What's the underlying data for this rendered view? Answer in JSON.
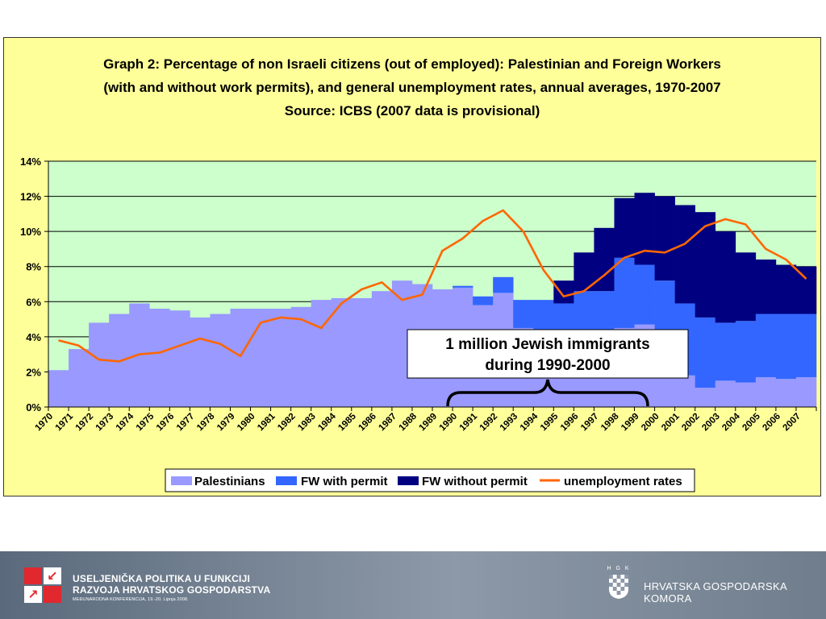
{
  "chart_data": {
    "type": "bar",
    "stacked": true,
    "title_lines": [
      "Graph 2: Percentage of non Israeli citizens (out of employed): Palestinian and Foreign Workers",
      "(with and without work permits), and general unemployment rates, annual averages, 1970-2007",
      "Source: ICBS (2007 data is provisional)"
    ],
    "categories": [
      "1970",
      "1971",
      "1972",
      "1973",
      "1974",
      "1975",
      "1976",
      "1977",
      "1978",
      "1979",
      "1980",
      "1981",
      "1982",
      "1983",
      "1984",
      "1985",
      "1986",
      "1987",
      "1988",
      "1989",
      "1990",
      "1991",
      "1992",
      "1993",
      "1994",
      "1995",
      "1996",
      "1997",
      "1998",
      "1999",
      "2000",
      "2001",
      "2002",
      "2003",
      "2004",
      "2005",
      "2006",
      "2007"
    ],
    "ylim": [
      0,
      14
    ],
    "yticks": [
      "0%",
      "2%",
      "4%",
      "6%",
      "8%",
      "10%",
      "12%",
      "14%"
    ],
    "y_unit": "%",
    "grid": true,
    "legend_position": "bottom",
    "series": [
      {
        "name": "Palestinians",
        "kind": "bar",
        "color": "#9999ff",
        "values": [
          2.1,
          3.3,
          4.8,
          5.3,
          5.9,
          5.6,
          5.5,
          5.1,
          5.3,
          5.6,
          5.6,
          5.6,
          5.7,
          6.1,
          6.2,
          6.2,
          6.6,
          7.2,
          7.0,
          6.7,
          6.8,
          5.8,
          6.5,
          4.5,
          4.0,
          2.8,
          2.6,
          3.8,
          4.5,
          4.7,
          4.3,
          1.8,
          1.1,
          1.5,
          1.4,
          1.7,
          1.6,
          1.7
        ]
      },
      {
        "name": "FW with permit",
        "kind": "bar",
        "color": "#3366ff",
        "values": [
          0,
          0,
          0,
          0,
          0,
          0,
          0,
          0,
          0,
          0,
          0,
          0,
          0,
          0,
          0,
          0,
          0,
          0,
          0,
          0,
          0.1,
          0.5,
          0.9,
          1.6,
          2.1,
          3.1,
          4.0,
          2.8,
          4.0,
          3.4,
          2.9,
          4.1,
          4.0,
          3.3,
          3.5,
          3.6,
          3.7,
          3.6
        ]
      },
      {
        "name": "FW without permit",
        "kind": "bar",
        "color": "#000080",
        "values": [
          0,
          0,
          0,
          0,
          0,
          0,
          0,
          0,
          0,
          0,
          0,
          0,
          0,
          0,
          0,
          0,
          0,
          0,
          0,
          0,
          0,
          0,
          0,
          0,
          0,
          1.3,
          2.2,
          3.6,
          3.4,
          4.1,
          4.8,
          5.6,
          6.0,
          5.2,
          3.9,
          3.1,
          2.8,
          2.7
        ]
      },
      {
        "name": "unemployment rates",
        "kind": "line",
        "color": "#ff6600",
        "values": [
          3.8,
          3.5,
          2.7,
          2.6,
          3.0,
          3.1,
          3.5,
          3.9,
          3.6,
          2.9,
          4.8,
          5.1,
          5.0,
          4.5,
          5.9,
          6.7,
          7.1,
          6.1,
          6.4,
          8.9,
          9.6,
          10.6,
          11.2,
          10.0,
          7.8,
          6.3,
          6.6,
          7.5,
          8.5,
          8.9,
          8.8,
          9.3,
          10.3,
          10.7,
          10.4,
          9.0,
          8.4,
          7.3
        ]
      }
    ],
    "annotation": {
      "lines": [
        "1 million Jewish immigrants",
        "during 1990-2000"
      ],
      "range": [
        "1990",
        "2000"
      ]
    },
    "colors": {
      "plot_bg": "#ccffcc",
      "chart_bg": "#ffff99",
      "grid": "#000000"
    }
  },
  "footer": {
    "left_title_lines": [
      "USELJENIČKA POLITIKA U FUNKCIJI",
      "RAZVOJA HRVATSKOG GOSPODARSTVA"
    ],
    "left_subtitle": "MEĐUNARODNA KONFERENCIJA, 19.-20. Lipnja 2008.",
    "right_logo_letters": "H G K",
    "right_title": "HRVATSKA GOSPODARSKA KOMORA",
    "brand_color": "#e0282e"
  }
}
